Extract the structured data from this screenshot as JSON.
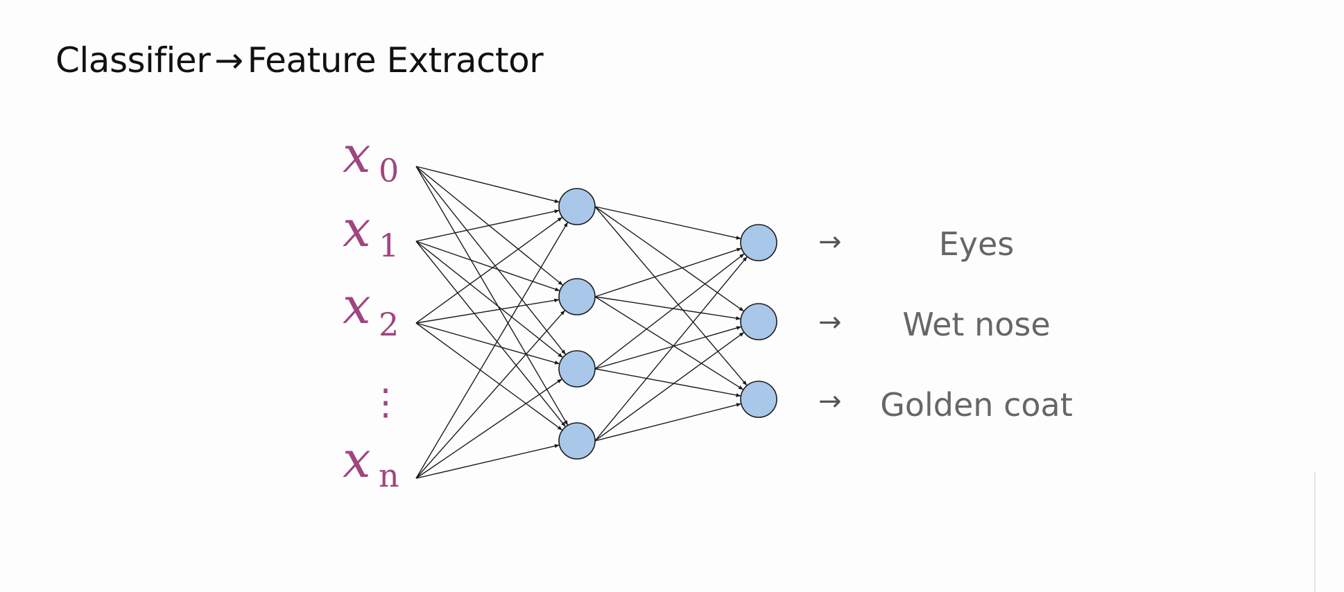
{
  "title": {
    "left": "Classifier",
    "arrow": "→",
    "right": "Feature Extractor"
  },
  "inputs": [
    {
      "base": "x",
      "sub": "0"
    },
    {
      "base": "x",
      "sub": "1"
    },
    {
      "base": "x",
      "sub": "2"
    },
    {
      "base": "⋮",
      "sub": ""
    },
    {
      "base": "x",
      "sub": "n"
    }
  ],
  "outputs": [
    {
      "arrow": "→",
      "label": "Eyes"
    },
    {
      "arrow": "→",
      "label": "Wet nose"
    },
    {
      "arrow": "→",
      "label": "Golden coat"
    }
  ],
  "colors": {
    "node_fill": "#a9c7e8",
    "input_label": "#a0457f",
    "output_label": "#666666"
  }
}
